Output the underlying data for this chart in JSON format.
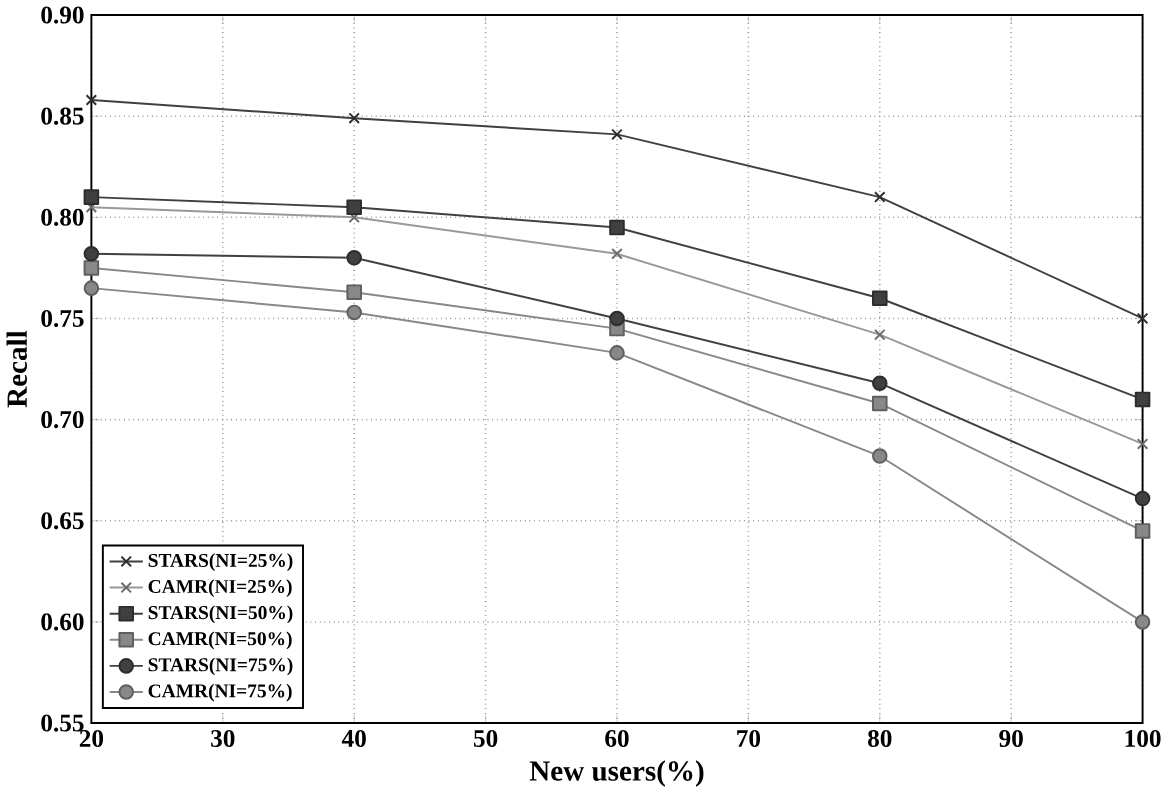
{
  "chart_data": {
    "type": "line",
    "xlabel": "New users(%)",
    "ylabel": "Recall",
    "x": [
      20,
      40,
      60,
      80,
      100
    ],
    "xlim": [
      20,
      100
    ],
    "xticks": [
      20,
      30,
      40,
      50,
      60,
      70,
      80,
      90,
      100
    ],
    "ylim": [
      0.55,
      0.9
    ],
    "yticks": [
      0.55,
      {
        "value": 0.6,
        "label": "0.60"
      },
      0.65,
      {
        "value": 0.7,
        "label": "0.70"
      },
      0.75,
      {
        "value": 0.8,
        "label": "0.80"
      },
      0.85,
      {
        "value": 0.9,
        "label": "0.90"
      }
    ],
    "grid": true,
    "legend": "bottom left",
    "series": [
      {
        "name": "STARS(NI=25%)",
        "color": "#404040",
        "marker": "cross",
        "values": [
          0.858,
          0.849,
          0.841,
          0.81,
          0.75
        ]
      },
      {
        "name": "CAMR(NI=25%)",
        "color": "#999999",
        "marker": "cross",
        "values": [
          0.805,
          0.8,
          0.782,
          0.742,
          0.688
        ]
      },
      {
        "name": "STARS(NI=50%)",
        "color": "#404040",
        "marker": "square",
        "values": [
          0.81,
          0.805,
          0.795,
          0.76,
          0.71
        ]
      },
      {
        "name": "CAMR(NI=50%)",
        "color": "#888888",
        "marker": "square",
        "values": [
          0.775,
          0.763,
          0.745,
          0.708,
          0.645
        ]
      },
      {
        "name": "STARS(NI=75%)",
        "color": "#404040",
        "marker": "circle",
        "values": [
          0.782,
          0.78,
          0.75,
          0.718,
          0.661
        ]
      },
      {
        "name": "CAMR(NI=75%)",
        "color": "#888888",
        "marker": "circle",
        "values": [
          0.765,
          0.753,
          0.733,
          0.682,
          0.6
        ]
      }
    ]
  }
}
